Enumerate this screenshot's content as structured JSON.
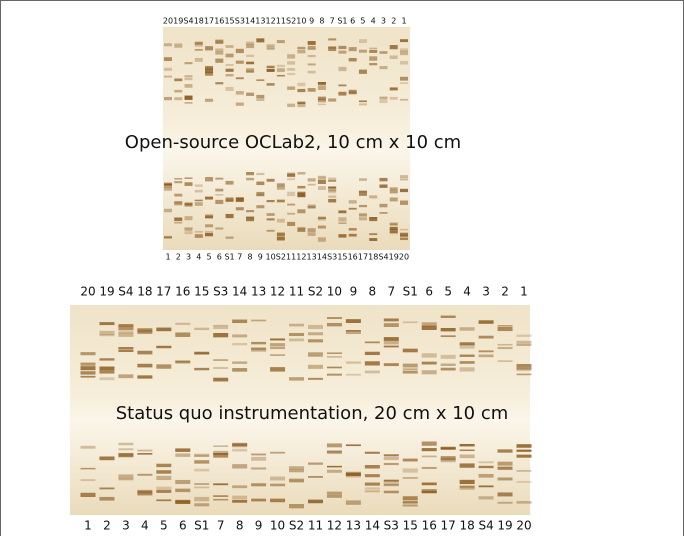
{
  "top_plate": {
    "caption": "Open-source OCLab2, 10 cm  x 10 cm",
    "lanes_top": [
      "20",
      "19",
      "S4",
      "18",
      "17",
      "16",
      "15",
      "S3",
      "14",
      "13",
      "12",
      "11",
      "S2",
      "10",
      "9",
      "8",
      "7",
      "S1",
      "6",
      "5",
      "4",
      "3",
      "2",
      "1"
    ],
    "lanes_bottom": [
      "1",
      "2",
      "3",
      "4",
      "5",
      "6",
      "S1",
      "7",
      "8",
      "9",
      "10",
      "S2",
      "11",
      "12",
      "13",
      "14",
      "S3",
      "15",
      "16",
      "17",
      "18",
      "S4",
      "19",
      "20"
    ]
  },
  "bottom_plate": {
    "caption": "Status quo instrumentation, 20 cm  x 10 cm",
    "lanes_top": [
      "20",
      "19",
      "S4",
      "18",
      "17",
      "16",
      "15",
      "S3",
      "14",
      "13",
      "12",
      "11",
      "S2",
      "10",
      "9",
      "8",
      "7",
      "S1",
      "6",
      "5",
      "4",
      "3",
      "2",
      "1"
    ],
    "lanes_bottom": [
      "1",
      "2",
      "3",
      "4",
      "5",
      "6",
      "S1",
      "7",
      "8",
      "9",
      "10",
      "S2",
      "11",
      "12",
      "13",
      "14",
      "S3",
      "15",
      "16",
      "17",
      "18",
      "S4",
      "19",
      "20"
    ]
  }
}
